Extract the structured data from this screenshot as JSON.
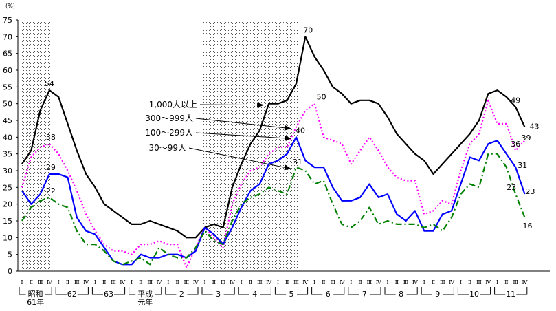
{
  "chart_data": {
    "type": "line",
    "title": "",
    "unit_label": "(%)",
    "ylim": [
      0,
      75
    ],
    "yticks": [
      0,
      5,
      10,
      15,
      20,
      25,
      30,
      35,
      40,
      45,
      50,
      55,
      60,
      65,
      70,
      75
    ],
    "quarters": [
      "Ⅰ",
      "Ⅱ",
      "Ⅲ",
      "Ⅳ"
    ],
    "year_groups": [
      {
        "lines": [
          "昭和",
          "61年"
        ],
        "start": 0
      },
      {
        "lines": [
          "62"
        ],
        "start": 4
      },
      {
        "lines": [
          "63"
        ],
        "start": 8
      },
      {
        "lines": [
          "平成",
          "元年"
        ],
        "start": 12
      },
      {
        "lines": [
          "2"
        ],
        "start": 16
      },
      {
        "lines": [
          "3"
        ],
        "start": 20
      },
      {
        "lines": [
          "4"
        ],
        "start": 24
      },
      {
        "lines": [
          "5"
        ],
        "start": 28
      },
      {
        "lines": [
          "6"
        ],
        "start": 32
      },
      {
        "lines": [
          "7"
        ],
        "start": 36
      },
      {
        "lines": [
          "8"
        ],
        "start": 40
      },
      {
        "lines": [
          "9"
        ],
        "start": 44
      },
      {
        "lines": [
          "10"
        ],
        "start": 48
      },
      {
        "lines": [
          "11"
        ],
        "start": 52
      }
    ],
    "shaded_periods": [
      [
        0,
        3
      ],
      [
        20,
        30
      ]
    ],
    "series": [
      {
        "name": "1,000人以上",
        "color": "#000000",
        "style": "solid",
        "values": [
          32,
          36,
          48,
          54,
          52,
          44,
          36,
          29,
          25,
          20,
          18,
          16,
          14,
          14,
          15,
          14,
          13,
          12,
          10,
          10,
          13,
          14,
          13,
          25,
          32,
          38,
          42,
          50,
          50,
          51,
          56,
          70,
          64,
          60,
          55,
          53,
          50,
          51,
          51,
          50,
          46,
          41,
          38,
          35,
          33,
          29,
          32,
          35,
          38,
          41,
          45,
          53,
          54,
          52,
          49,
          43
        ],
        "annotations": [
          {
            "i": 3,
            "text": "54"
          },
          {
            "i": 31,
            "text": "70"
          },
          {
            "i": 54,
            "text": "49"
          },
          {
            "i": 55,
            "text": "43"
          }
        ]
      },
      {
        "name": "300～999人",
        "color": "#ff00ff",
        "style": "dot",
        "values": [
          25,
          34,
          37,
          38,
          35,
          30,
          24,
          17,
          12,
          8,
          6,
          6,
          5,
          8,
          8,
          9,
          8,
          8,
          1,
          7,
          13,
          10,
          7,
          20,
          26,
          30,
          31,
          35,
          37,
          37,
          43,
          48,
          50,
          40,
          39,
          38,
          32,
          36,
          40,
          36,
          31,
          28,
          27,
          27,
          17,
          18,
          21,
          20,
          30,
          38,
          41,
          51,
          44,
          44,
          36,
          39
        ],
        "annotations": [
          {
            "i": 3,
            "text": "38"
          },
          {
            "i": 32,
            "text": "50"
          },
          {
            "i": 54,
            "text": "36"
          },
          {
            "i": 55,
            "text": "39"
          }
        ]
      },
      {
        "name": "100～299人",
        "color": "#0000ff",
        "style": "solid",
        "values": [
          24,
          20,
          23,
          29,
          29,
          28,
          16,
          12,
          11,
          7,
          3,
          2,
          2,
          5,
          4,
          4,
          5,
          5,
          4,
          6,
          13,
          11,
          8,
          13,
          19,
          24,
          26,
          32,
          33,
          35,
          40,
          33,
          31,
          31,
          25,
          21,
          21,
          22,
          26,
          22,
          23,
          17,
          15,
          18,
          12,
          12,
          17,
          18,
          26,
          34,
          33,
          38,
          39,
          35,
          31,
          23
        ],
        "annotations": [
          {
            "i": 3,
            "text": "29"
          },
          {
            "i": 30,
            "text": "40"
          },
          {
            "i": 54,
            "text": "31"
          },
          {
            "i": 55,
            "text": "23"
          }
        ]
      },
      {
        "name": "30～99人",
        "color": "#008000",
        "style": "dashdot",
        "values": [
          15,
          19,
          21,
          22,
          20,
          19,
          12,
          8,
          8,
          6,
          3,
          2,
          3,
          4,
          2,
          7,
          5,
          4,
          4,
          7,
          12,
          9,
          8,
          15,
          20,
          22,
          23,
          25,
          24,
          23,
          31,
          30,
          26,
          27,
          20,
          14,
          13,
          15,
          19,
          14,
          15,
          14,
          14,
          14,
          13,
          14,
          12,
          16,
          23,
          26,
          25,
          35,
          35,
          31,
          23,
          16
        ],
        "annotations": [
          {
            "i": 3,
            "text": "22"
          },
          {
            "i": 30,
            "text": "31"
          },
          {
            "i": 54,
            "text": "23"
          },
          {
            "i": 55,
            "text": "16"
          }
        ]
      }
    ]
  }
}
